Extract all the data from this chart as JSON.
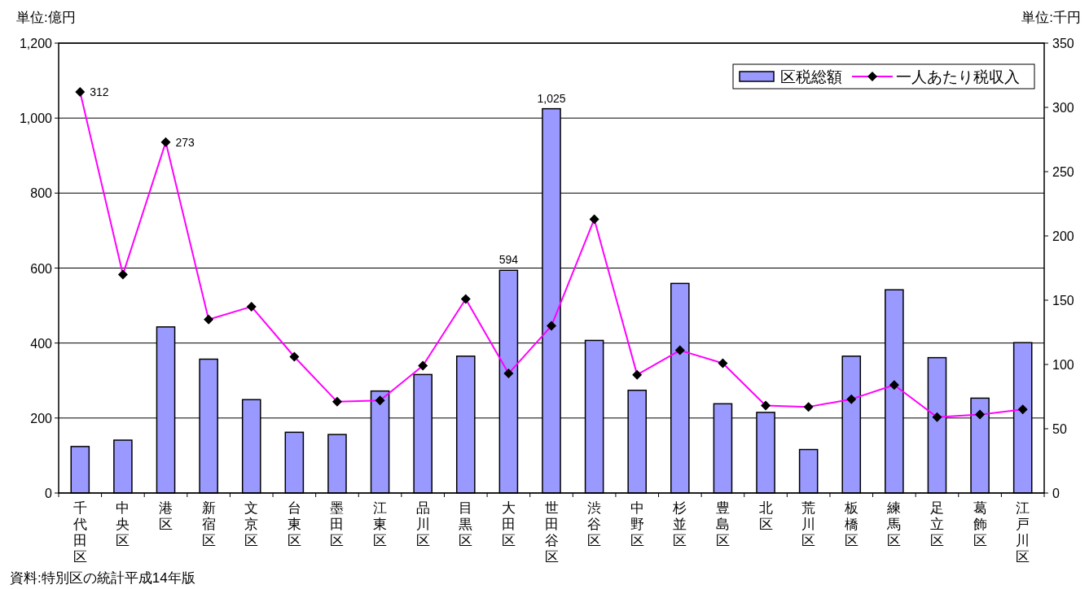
{
  "chart_data": {
    "type": "bar",
    "ylabel": "単位:億円",
    "y2label": "単位:千円",
    "annotations": [
      "資料:特別区の統計平成14年版"
    ],
    "categories": [
      "千代田区",
      "中央区",
      "港区",
      "新宿区",
      "文京区",
      "台東区",
      "墨田区",
      "江東区",
      "品川区",
      "目黒区",
      "大田区",
      "世田谷区",
      "渋谷区",
      "中野区",
      "杉並区",
      "豊島区",
      "北区",
      "荒川区",
      "板橋区",
      "練馬区",
      "足立区",
      "葛飾区",
      "江戸川区"
    ],
    "series": [
      {
        "name": "区税総額",
        "color": "#9999ff",
        "values": [
          124,
          141,
          443,
          357,
          249,
          162,
          156,
          272,
          316,
          365,
          594,
          1025,
          407,
          274,
          559,
          238,
          215,
          116,
          365,
          542,
          361,
          253,
          401
        ],
        "value_labels": [
          null,
          null,
          null,
          null,
          null,
          null,
          null,
          null,
          null,
          null,
          "594",
          "1,025",
          null,
          null,
          null,
          null,
          null,
          null,
          null,
          null,
          null,
          null,
          null
        ]
      },
      {
        "name": "一人あたり税収入",
        "type": "line",
        "axis": "y2",
        "color": "#ff00ff",
        "values": [
          312,
          170,
          273,
          135,
          145,
          106,
          71,
          72,
          99,
          151,
          93,
          130,
          213,
          92,
          111,
          101,
          68,
          67,
          73,
          84,
          59,
          61,
          65
        ],
        "value_labels": [
          "312",
          null,
          "273",
          null,
          null,
          null,
          null,
          null,
          null,
          null,
          null,
          null,
          null,
          null,
          null,
          null,
          null,
          null,
          null,
          null,
          null,
          null,
          null
        ]
      }
    ],
    "marker": "diamond",
    "ylim": [
      0,
      1200
    ],
    "yticks": [
      0,
      200,
      400,
      600,
      800,
      {
        "value": 1000,
        "label": "1,000"
      },
      {
        "value": 1200,
        "label": "1,200"
      }
    ],
    "y2lim": [
      0,
      350
    ],
    "y2ticks": [
      0,
      50,
      100,
      150,
      200,
      250,
      300,
      350
    ],
    "grid": "y",
    "legend": "top right"
  }
}
